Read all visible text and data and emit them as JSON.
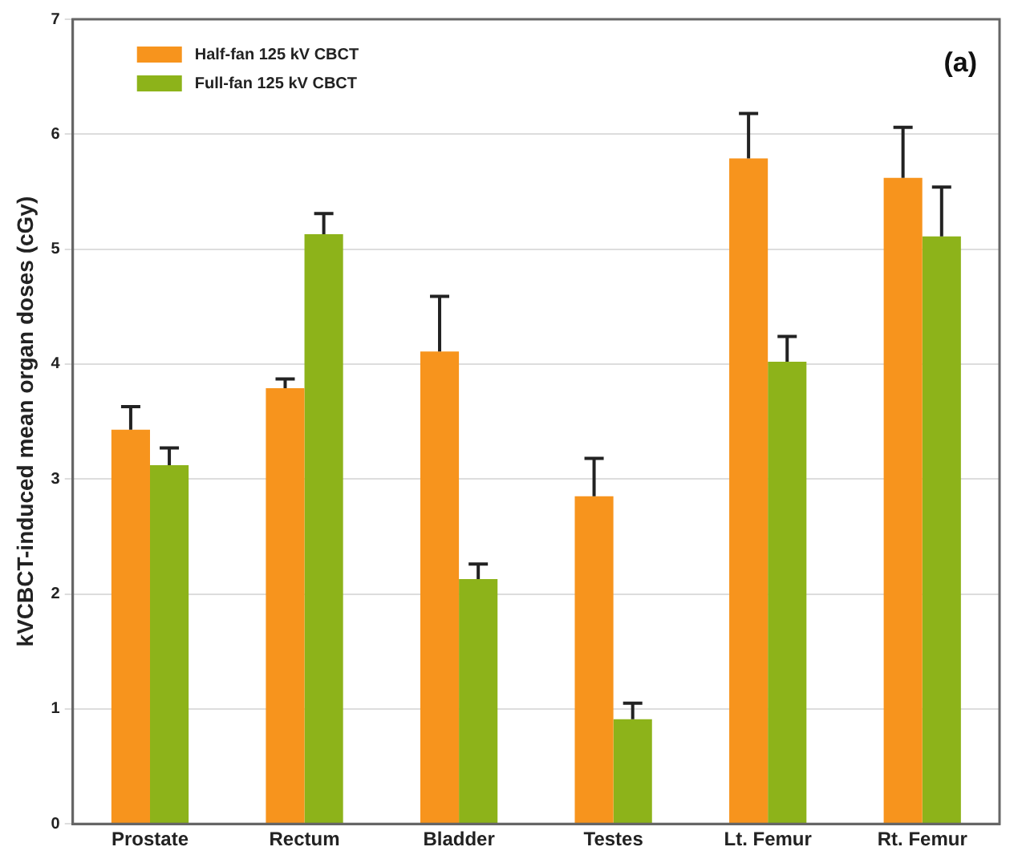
{
  "chart_data": {
    "type": "bar",
    "ylabel": "kVCBCT-induced mean organ doses (cGy)",
    "annotations": [
      "(a)"
    ],
    "categories": [
      "Prostate",
      "Rectum",
      "Bladder",
      "Testes",
      "Lt. Femur",
      "Rt. Femur"
    ],
    "series": [
      {
        "name": "Half-fan 125 kV CBCT",
        "color": "#f7941d",
        "values": [
          3.43,
          3.79,
          4.11,
          2.85,
          5.79,
          5.62
        ],
        "errors": [
          [
            3.43,
            3.63
          ],
          [
            3.79,
            3.87
          ],
          [
            4.11,
            4.59
          ],
          [
            2.85,
            3.18
          ],
          [
            5.79,
            6.18
          ],
          [
            5.62,
            6.06
          ]
        ]
      },
      {
        "name": "Full-fan 125 kV CBCT",
        "color": "#8db31a",
        "values": [
          3.12,
          5.13,
          2.13,
          0.91,
          4.02,
          5.11
        ],
        "errors": [
          [
            3.12,
            3.27
          ],
          [
            5.13,
            5.31
          ],
          [
            2.13,
            2.26
          ],
          [
            0.91,
            1.05
          ],
          [
            4.02,
            4.24
          ],
          [
            5.11,
            5.54
          ]
        ]
      }
    ],
    "ylim": [
      0,
      7
    ],
    "yticks": [
      0,
      1,
      2,
      3,
      4,
      5,
      6,
      7
    ],
    "grid": "y",
    "legend": "top left"
  }
}
